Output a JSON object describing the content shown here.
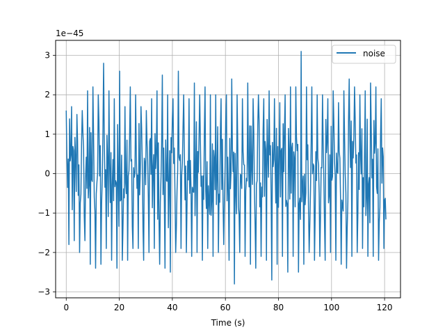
{
  "chart_data": {
    "type": "line",
    "title": "",
    "xlabel": "Time (s)",
    "ylabel": "",
    "y_offset_text": "1e−45",
    "y_multiplier": 1e-45,
    "xlim": [
      -4,
      126
    ],
    "ylim": [
      -3.15,
      3.38
    ],
    "x_ticks": [
      0,
      20,
      40,
      60,
      80,
      100,
      120
    ],
    "x_tick_labels": [
      "0",
      "20",
      "40",
      "60",
      "80",
      "100",
      "120"
    ],
    "y_ticks": [
      -3,
      -2,
      -1,
      0,
      1,
      2,
      3
    ],
    "y_tick_labels": [
      "−3",
      "−2",
      "−1",
      "0",
      "1",
      "2",
      "3"
    ],
    "grid": true,
    "legend_position": "top-right",
    "series": [
      {
        "name": "noise",
        "color": "#1f77b4",
        "x_range": [
          0,
          120.5
        ],
        "envelope_bins": 60,
        "upper": [
          1.6,
          1.7,
          1.5,
          1.6,
          2.1,
          2.2,
          2.0,
          2.8,
          2.1,
          1.9,
          2.6,
          1.7,
          2.2,
          2.0,
          1.7,
          1.6,
          1.9,
          2.1,
          2.5,
          2.0,
          1.9,
          2.6,
          2.0,
          1.9,
          2.3,
          2.0,
          2.2,
          2.0,
          2.0,
          1.9,
          2.0,
          2.4,
          2.0,
          1.9,
          2.3,
          1.9,
          2.0,
          1.9,
          2.1,
          1.9,
          1.8,
          2.0,
          2.2,
          2.2,
          3.1,
          2.2,
          2.2,
          2.0,
          2.0,
          1.9,
          2.1,
          1.8,
          2.1,
          2.4,
          2.2,
          2.0,
          2.1,
          2.3,
          2.2,
          1.9
        ],
        "lower": [
          -1.8,
          -1.7,
          -2.0,
          -1.7,
          -2.3,
          -2.4,
          -2.3,
          -1.9,
          -2.2,
          -2.4,
          -2.2,
          -2.2,
          -1.9,
          -1.9,
          -2.2,
          -2.0,
          -1.9,
          -2.3,
          -2.4,
          -2.5,
          -2.0,
          -1.9,
          -2.0,
          -2.1,
          -2.0,
          -2.2,
          -1.9,
          -2.1,
          -2.0,
          -1.8,
          -2.2,
          -2.8,
          -2.0,
          -2.1,
          -2.3,
          -2.4,
          -2.1,
          -2.2,
          -2.7,
          -2.3,
          -2.1,
          -2.5,
          -2.1,
          -2.5,
          -2.3,
          -2.0,
          -2.2,
          -2.1,
          -2.2,
          -2.0,
          -2.2,
          -2.3,
          -2.4,
          -2.1,
          -2.0,
          -1.9,
          -2.1,
          -2.1,
          -2.2,
          -1.9
        ]
      }
    ]
  }
}
